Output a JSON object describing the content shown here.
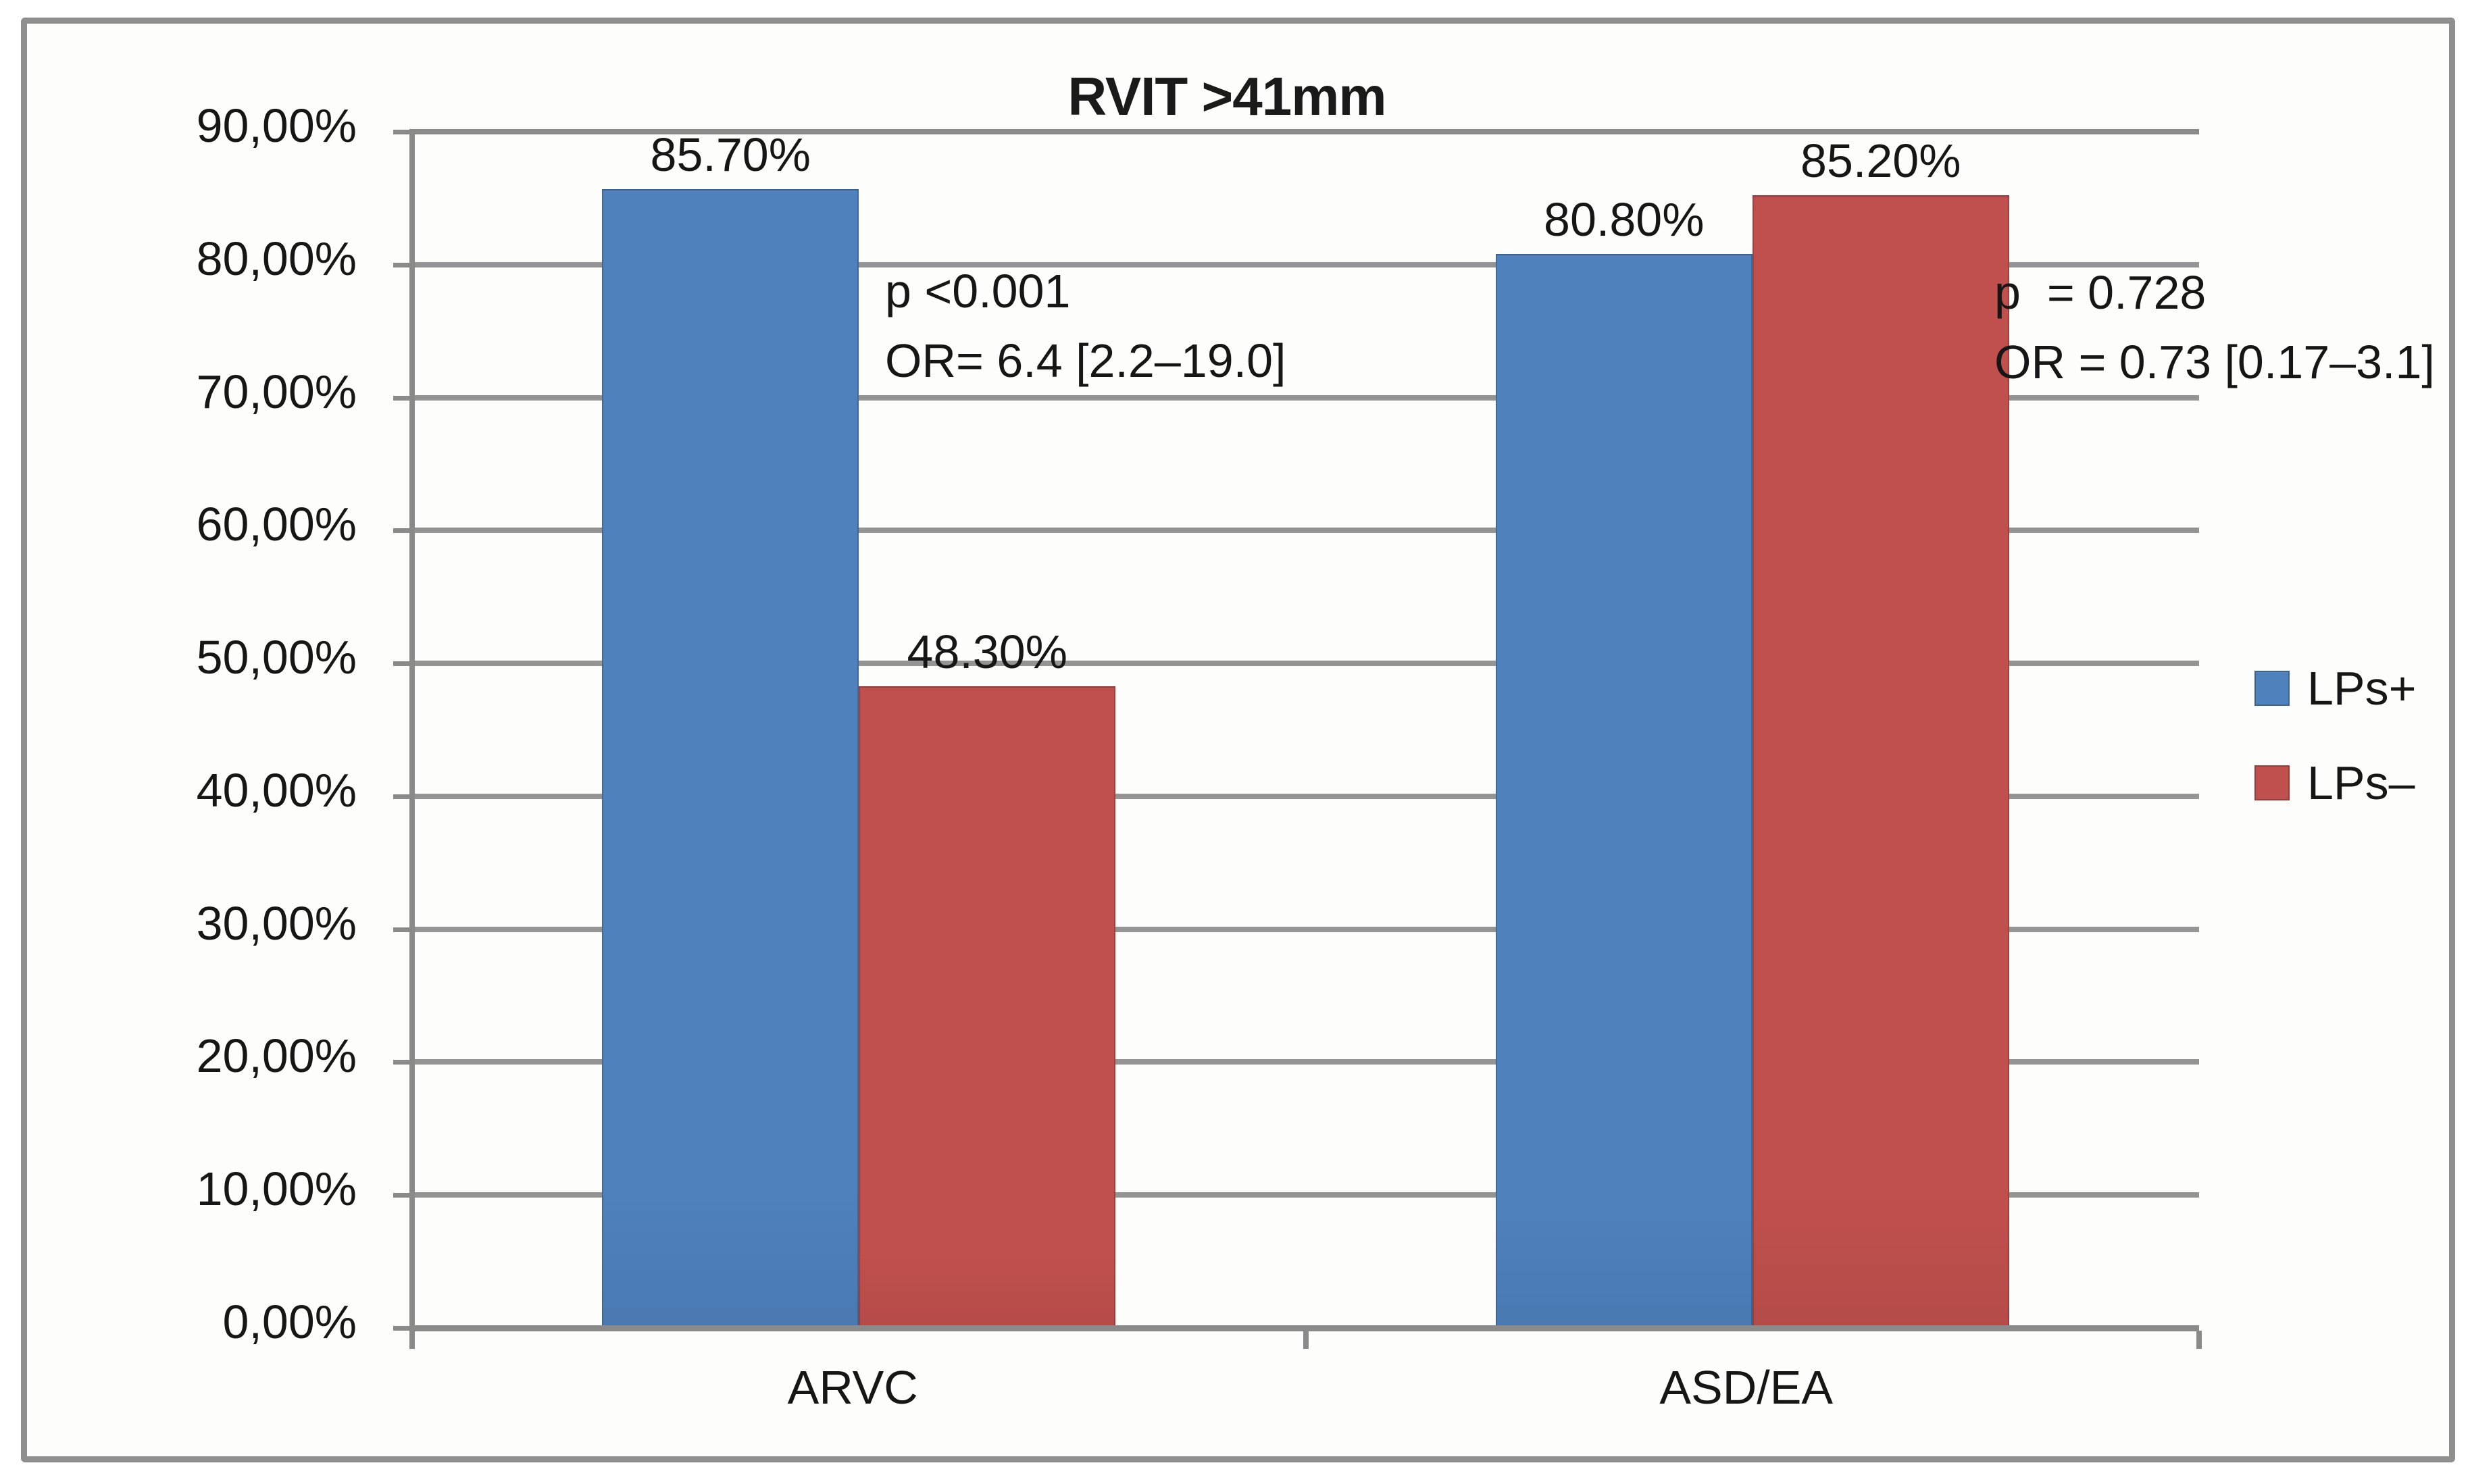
{
  "chart_data": {
    "type": "bar",
    "title": "RVIT >41mm",
    "categories": [
      "ARVC",
      "ASD/EA"
    ],
    "series": [
      {
        "name": "LPs+",
        "color": "#4F81BD",
        "values": [
          85.7,
          80.8
        ],
        "labels": [
          "85.70%",
          "80.80%"
        ]
      },
      {
        "name": "LPs–",
        "color": "#C0504D",
        "values": [
          48.3,
          85.2
        ],
        "labels": [
          "48.30%",
          "85.20%"
        ]
      }
    ],
    "ylim": [
      0,
      90
    ],
    "ytick_step": 10,
    "ytick_labels": [
      "0,00%",
      "10,00%",
      "20,00%",
      "30,00%",
      "40,00%",
      "50,00%",
      "60,00%",
      "70,00%",
      "80,00%",
      "90,00%"
    ],
    "grid": true,
    "legend_position": "right",
    "annotations": [
      {
        "group": "ARVC",
        "lines": [
          "p <0.001",
          "OR= 6.4 [2.2–19.0]"
        ]
      },
      {
        "group": "ASD/EA",
        "lines": [
          "p  = 0.728",
          "OR = 0.73 [0.17–3.1]"
        ]
      }
    ],
    "colors": {
      "gridline": "#949494",
      "axis": "#8a8a8a",
      "frame_border": "#8f8f8f",
      "text": "#161616"
    }
  }
}
